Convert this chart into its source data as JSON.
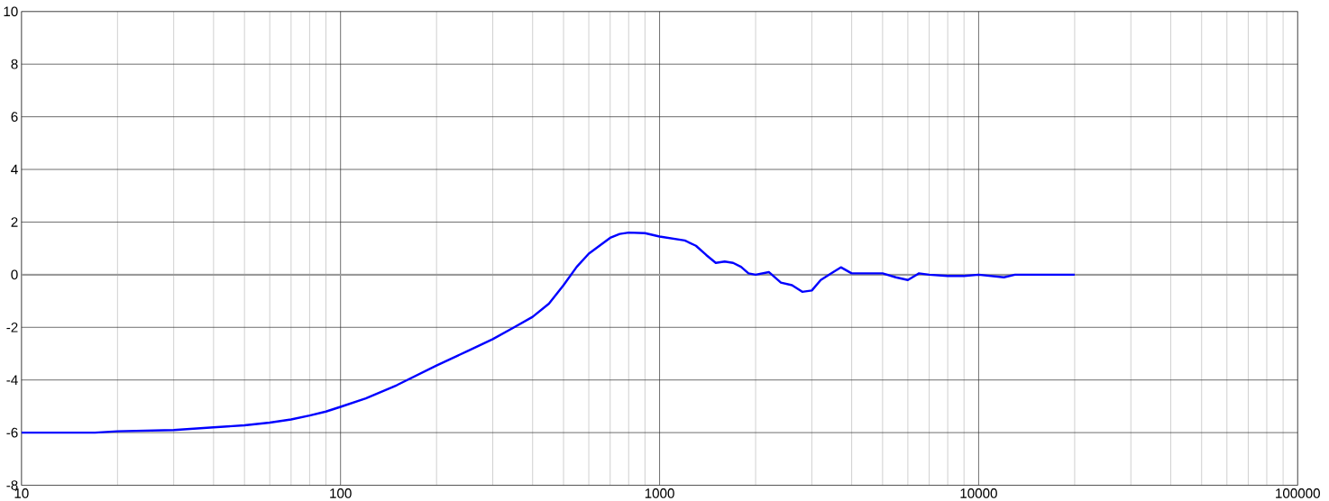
{
  "chart_data": {
    "type": "line",
    "log": "x",
    "xlim": [
      10,
      100000
    ],
    "ylim": [
      -8,
      10
    ],
    "xticks": [
      10,
      100,
      1000,
      10000,
      100000
    ],
    "yticks": [
      -8,
      -6,
      -4,
      -2,
      0,
      2,
      4,
      6,
      8,
      10
    ],
    "grid": true,
    "marker": "none",
    "line_style": "solid",
    "ref_lines": [
      {
        "axis": "y",
        "value": 0,
        "color": "#999999"
      }
    ],
    "series": [
      {
        "color": "#0000ff",
        "x": [
          10,
          17,
          20,
          30,
          40,
          50,
          60,
          70,
          80,
          90,
          100,
          120,
          150,
          200,
          250,
          300,
          350,
          400,
          450,
          500,
          550,
          600,
          700,
          750,
          800,
          900,
          1000,
          1200,
          1300,
          1400,
          1500,
          1600,
          1700,
          1800,
          1900,
          2000,
          2200,
          2400,
          2600,
          2800,
          3000,
          3200,
          3500,
          3700,
          4000,
          4500,
          5000,
          5500,
          6000,
          6500,
          7000,
          8000,
          9000,
          10000,
          12000,
          13000,
          16000,
          20000
        ],
        "values": [
          -6.0,
          -6.0,
          -5.95,
          -5.9,
          -5.8,
          -5.72,
          -5.62,
          -5.5,
          -5.35,
          -5.2,
          -5.02,
          -4.7,
          -4.2,
          -3.45,
          -2.9,
          -2.45,
          -2.0,
          -1.6,
          -1.1,
          -0.4,
          0.3,
          0.8,
          1.4,
          1.55,
          1.6,
          1.58,
          1.45,
          1.3,
          1.1,
          0.75,
          0.45,
          0.5,
          0.45,
          0.3,
          0.05,
          0.0,
          0.1,
          -0.3,
          -0.4,
          -0.65,
          -0.6,
          -0.2,
          0.1,
          0.28,
          0.05,
          0.05,
          0.05,
          -0.1,
          -0.2,
          0.05,
          0.0,
          -0.05,
          -0.05,
          0.0,
          -0.1,
          0.0,
          0.0,
          0.0
        ]
      }
    ]
  }
}
